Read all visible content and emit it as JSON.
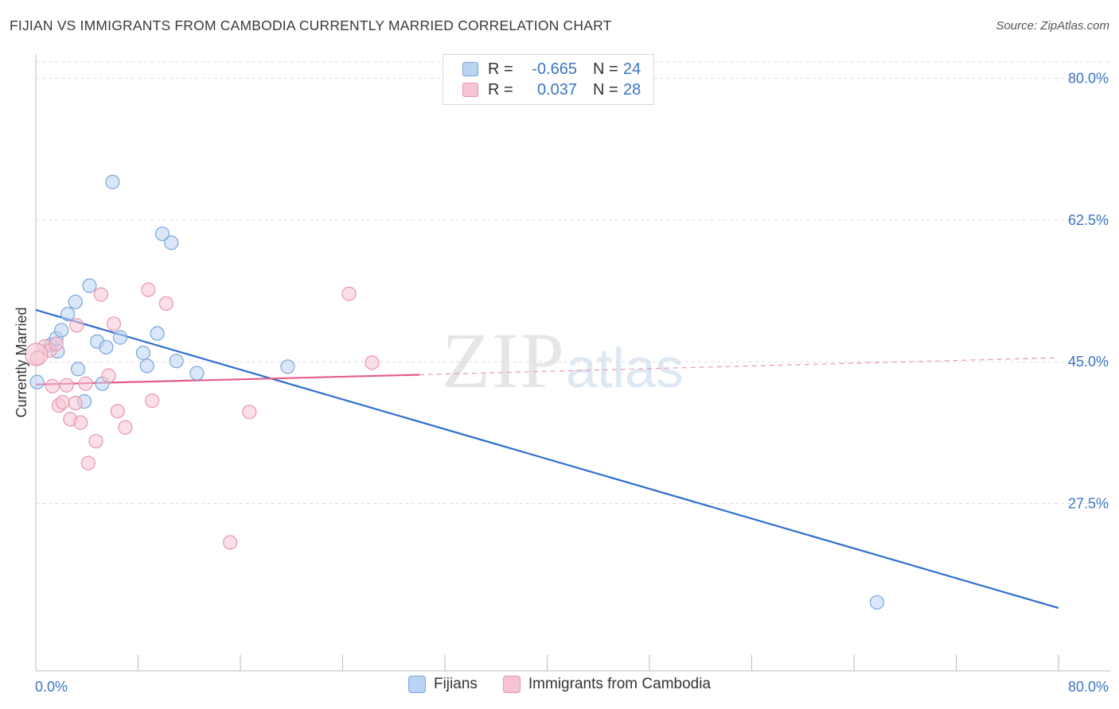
{
  "header": {
    "title": "FIJIAN VS IMMIGRANTS FROM CAMBODIA CURRENTLY MARRIED CORRELATION CHART",
    "source": "Source: ZipAtlas.com"
  },
  "legend": {
    "rows": [
      {
        "r_label": "R =",
        "r_value": "-0.665",
        "n_label": "N =",
        "n_value": "24"
      },
      {
        "r_label": "R =",
        "r_value": "0.037",
        "n_label": "N =",
        "n_value": "28"
      }
    ]
  },
  "watermark": {
    "zip": "ZIP",
    "atlas": "atlas"
  },
  "colors": {
    "blue_fill": "#b9d3f3",
    "blue_stroke": "#7aa6dc",
    "blue_line": "#2f6fd0",
    "pink_fill": "#f6c4d2",
    "pink_stroke": "#e896b0",
    "pink_line": "#e35d8a",
    "grid": "#dcdcdc",
    "tick_label": "#3b76c4"
  },
  "chart_data": {
    "type": "scatter",
    "title": "FIJIAN VS IMMIGRANTS FROM CAMBODIA CURRENTLY MARRIED CORRELATION CHART",
    "xlabel": "",
    "ylabel": "Currently Married",
    "xlim": [
      0,
      80
    ],
    "ylim": [
      9,
      83
    ],
    "x_tick_labels": [
      {
        "value": 0,
        "label": "0.0%"
      },
      {
        "value": 80,
        "label": "80.0%"
      }
    ],
    "y_tick_labels": [
      {
        "value": 80,
        "label": "80.0%"
      },
      {
        "value": 62.5,
        "label": "62.5%"
      },
      {
        "value": 45,
        "label": "45.0%"
      },
      {
        "value": 27.5,
        "label": "27.5%"
      }
    ],
    "y_gridlines": [
      80,
      62.5,
      45,
      27.5
    ],
    "grid": true,
    "series": [
      {
        "name": "Fijians",
        "color": "#7aa6dc",
        "r": -0.665,
        "n": 24,
        "points": [
          [
            0.1,
            42.5
          ],
          [
            1.2,
            47.1
          ],
          [
            1.7,
            46.3
          ],
          [
            1.6,
            47.9
          ],
          [
            2.0,
            48.9
          ],
          [
            2.5,
            50.9
          ],
          [
            3.1,
            52.4
          ],
          [
            3.3,
            44.1
          ],
          [
            3.8,
            40.1
          ],
          [
            4.2,
            54.4
          ],
          [
            4.8,
            47.5
          ],
          [
            5.2,
            42.3
          ],
          [
            5.5,
            46.8
          ],
          [
            6.0,
            67.2
          ],
          [
            6.6,
            48.0
          ],
          [
            8.4,
            46.1
          ],
          [
            8.7,
            44.5
          ],
          [
            9.5,
            48.5
          ],
          [
            9.9,
            60.8
          ],
          [
            10.6,
            59.7
          ],
          [
            11.0,
            45.1
          ],
          [
            12.6,
            43.6
          ],
          [
            19.7,
            44.4
          ],
          [
            65.8,
            15.3
          ]
        ],
        "trend": {
          "x0": 0,
          "y0": 51.4,
          "x1": 80,
          "y1": 14.6
        }
      },
      {
        "name": "Immigrants from Cambodia",
        "color": "#e896b0",
        "r": 0.037,
        "n": 28,
        "points": [
          [
            0.1,
            45.5
          ],
          [
            0.7,
            46.9
          ],
          [
            1.1,
            46.4
          ],
          [
            1.3,
            42.0
          ],
          [
            1.6,
            47.2
          ],
          [
            1.8,
            39.6
          ],
          [
            2.1,
            40.0
          ],
          [
            2.4,
            42.1
          ],
          [
            2.7,
            37.9
          ],
          [
            3.1,
            39.9
          ],
          [
            3.2,
            49.5
          ],
          [
            3.5,
            37.5
          ],
          [
            3.9,
            42.3
          ],
          [
            4.1,
            32.5
          ],
          [
            4.7,
            35.2
          ],
          [
            5.1,
            53.3
          ],
          [
            5.7,
            43.3
          ],
          [
            6.1,
            49.7
          ],
          [
            6.4,
            38.9
          ],
          [
            7.0,
            36.9
          ],
          [
            8.8,
            53.9
          ],
          [
            9.1,
            40.2
          ],
          [
            10.2,
            52.2
          ],
          [
            15.2,
            22.7
          ],
          [
            16.7,
            38.8
          ],
          [
            24.5,
            53.4
          ],
          [
            26.3,
            44.9
          ],
          [
            0.05,
            45.9
          ]
        ],
        "trend": {
          "x0": 0,
          "y0": 42.2,
          "x1": 30,
          "y1": 43.4
        },
        "trend_dashed": {
          "x0": 30,
          "y0": 43.4,
          "x1": 80,
          "y1": 45.5
        }
      }
    ]
  }
}
